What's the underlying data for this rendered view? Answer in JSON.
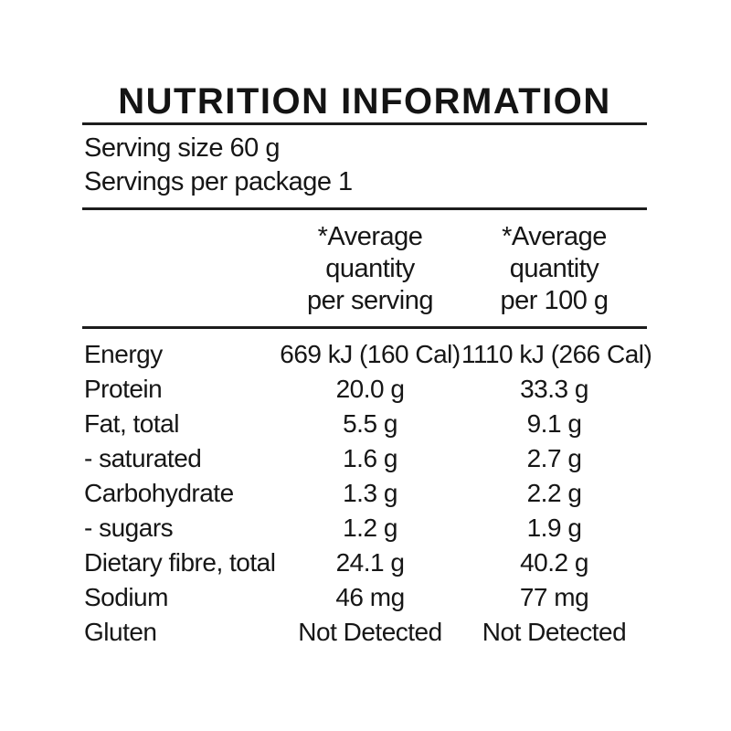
{
  "panel": {
    "title": "NUTRITION INFORMATION",
    "serving_size_line": "Serving size 60 g",
    "servings_per_package_line": "Servings per package 1"
  },
  "table": {
    "col1_header": "*Average\nquantity\nper serving",
    "col2_header": "*Average\nquantity\nper 100 g",
    "rows": [
      {
        "label": "Energy",
        "per_serving": "669 kJ (160 Cal)",
        "per_100g": "1110 kJ (266 Cal)"
      },
      {
        "label": "Protein",
        "per_serving": "20.0 g",
        "per_100g": "33.3 g"
      },
      {
        "label": "Fat, total",
        "per_serving": "5.5 g",
        "per_100g": "9.1 g"
      },
      {
        "label": "- saturated",
        "per_serving": "1.6 g",
        "per_100g": "2.7 g"
      },
      {
        "label": "Carbohydrate",
        "per_serving": "1.3 g",
        "per_100g": "2.2 g"
      },
      {
        "label": "- sugars",
        "per_serving": "1.2 g",
        "per_100g": "1.9 g"
      },
      {
        "label": "Dietary fibre, total",
        "per_serving": "24.1 g",
        "per_100g": "40.2 g"
      },
      {
        "label": "Sodium",
        "per_serving": "46 mg",
        "per_100g": "77 mg"
      },
      {
        "label": "Gluten",
        "per_serving": "Not Detected",
        "per_100g": "Not Detected"
      }
    ]
  },
  "colors": {
    "background": "#ffffff",
    "text": "#161616",
    "rule": "#1d1d1d"
  }
}
